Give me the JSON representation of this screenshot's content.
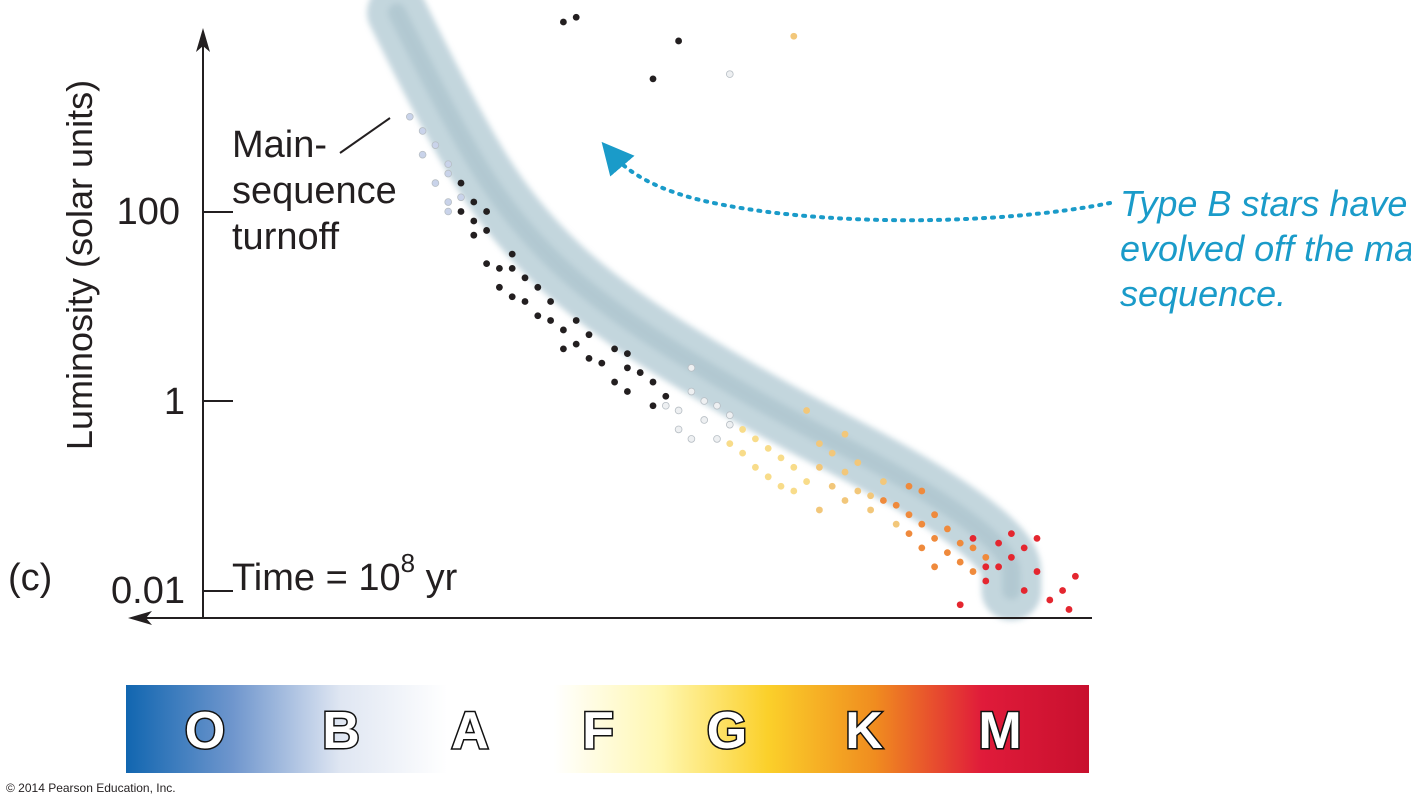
{
  "panel_label": "(c)",
  "copyright": "© 2014 Pearson Education, Inc.",
  "chart_data": {
    "type": "scatter",
    "title": "",
    "ylabel": "Luminosity (solar units)",
    "xlabel": "",
    "y_scale": "log",
    "y_ticks": [
      {
        "value": 100,
        "label": "100"
      },
      {
        "value": 1,
        "label": "1"
      },
      {
        "value": 0.01,
        "label": "0.01"
      }
    ],
    "x_categories": [
      "O",
      "B",
      "A",
      "F",
      "G",
      "K",
      "M"
    ],
    "time_note": {
      "prefix": "Time ",
      "eq": "=",
      "base": " 10",
      "exp": "8",
      "suffix": " yr"
    },
    "turnoff_label": [
      "Main-",
      "sequence",
      "turnoff"
    ],
    "annotation": [
      "Type B stars have",
      "evolved off the main",
      "sequence."
    ],
    "annotation_color": "#1a9bc9",
    "band_color": "#b9cfd8",
    "star_colors": {
      "blue": "#c9d3ea",
      "black": "#231f20",
      "white": "#eef0f2",
      "yellow": "#f8dc8a",
      "lightorange": "#f2c77a",
      "orange": "#ef8a3c",
      "red": "#e4262f"
    },
    "main_sequence_band": [
      {
        "spectral": 1.5,
        "log_l": 4.1
      },
      {
        "spectral": 1.9,
        "log_l": 3.0
      },
      {
        "spectral": 2.4,
        "log_l": 1.9
      },
      {
        "spectral": 3.1,
        "log_l": 1.0
      },
      {
        "spectral": 4.3,
        "log_l": 0.0
      },
      {
        "spectral": 5.6,
        "log_l": -0.9
      },
      {
        "spectral": 6.3,
        "log_l": -1.6
      },
      {
        "spectral": 6.3,
        "log_l": -2.0
      }
    ],
    "series": [
      {
        "color": "blue",
        "points": [
          [
            1.6,
            3.0
          ],
          [
            1.7,
            2.6
          ],
          [
            1.7,
            2.85
          ],
          [
            1.8,
            2.7
          ],
          [
            1.8,
            2.3
          ],
          [
            1.9,
            2.4
          ],
          [
            1.9,
            2.1
          ],
          [
            1.9,
            2.0
          ],
          [
            2.0,
            2.15
          ],
          [
            1.9,
            2.5
          ]
        ]
      },
      {
        "color": "black",
        "points": [
          [
            2.0,
            2.3
          ],
          [
            2.1,
            2.1
          ],
          [
            2.1,
            1.75
          ],
          [
            2.2,
            1.45
          ],
          [
            2.2,
            2.0
          ],
          [
            2.3,
            1.4
          ],
          [
            2.3,
            1.2
          ],
          [
            2.4,
            1.55
          ],
          [
            2.5,
            1.3
          ],
          [
            2.5,
            1.05
          ],
          [
            2.6,
            1.2
          ],
          [
            2.6,
            0.9
          ],
          [
            2.7,
            1.05
          ],
          [
            2.8,
            0.75
          ],
          [
            2.8,
            0.55
          ],
          [
            2.9,
            0.6
          ],
          [
            3.0,
            0.45
          ],
          [
            3.0,
            0.7
          ],
          [
            3.1,
            0.4
          ],
          [
            3.2,
            0.55
          ],
          [
            3.2,
            0.2
          ],
          [
            3.3,
            0.35
          ],
          [
            3.3,
            0.1
          ],
          [
            3.4,
            0.3
          ],
          [
            3.5,
            -0.05
          ],
          [
            3.5,
            0.2
          ],
          [
            2.7,
            0.85
          ],
          [
            2.9,
            0.85
          ],
          [
            2.2,
            1.8
          ],
          [
            2.4,
            1.1
          ],
          [
            2.0,
            2.0
          ],
          [
            2.1,
            1.9
          ],
          [
            2.4,
            1.4
          ],
          [
            3.3,
            0.5
          ],
          [
            3.6,
            0.05
          ]
        ]
      },
      {
        "color": "white",
        "points": [
          [
            3.6,
            -0.05
          ],
          [
            3.7,
            -0.1
          ],
          [
            3.7,
            -0.3
          ],
          [
            3.8,
            0.1
          ],
          [
            3.8,
            0.35
          ],
          [
            3.9,
            -0.2
          ],
          [
            4.0,
            -0.05
          ],
          [
            4.0,
            -0.4
          ],
          [
            4.1,
            -0.25
          ],
          [
            4.1,
            -0.15
          ],
          [
            3.8,
            -0.4
          ],
          [
            3.9,
            0.0
          ]
        ]
      },
      {
        "color": "yellow",
        "points": [
          [
            4.1,
            -0.45
          ],
          [
            4.2,
            -0.3
          ],
          [
            4.2,
            -0.55
          ],
          [
            4.3,
            -0.4
          ],
          [
            4.3,
            -0.7
          ],
          [
            4.4,
            -0.5
          ],
          [
            4.4,
            -0.8
          ],
          [
            4.5,
            -0.6
          ],
          [
            4.5,
            -0.9
          ],
          [
            4.6,
            -0.7
          ],
          [
            4.7,
            -0.85
          ],
          [
            4.6,
            -0.95
          ]
        ]
      },
      {
        "color": "lightorange",
        "points": [
          [
            4.7,
            -0.1
          ],
          [
            4.8,
            -0.45
          ],
          [
            4.8,
            -0.7
          ],
          [
            4.9,
            -0.55
          ],
          [
            4.9,
            -0.9
          ],
          [
            5.0,
            -0.75
          ],
          [
            5.0,
            -1.05
          ],
          [
            5.1,
            -0.95
          ],
          [
            5.1,
            -0.65
          ],
          [
            5.2,
            -1.15
          ],
          [
            5.3,
            -0.85
          ],
          [
            4.8,
            -1.15
          ],
          [
            5.2,
            -1.0
          ],
          [
            5.0,
            -0.35
          ],
          [
            5.4,
            -1.3
          ]
        ]
      },
      {
        "color": "orange",
        "points": [
          [
            5.4,
            -1.1
          ],
          [
            5.5,
            -1.2
          ],
          [
            5.5,
            -1.4
          ],
          [
            5.6,
            -1.3
          ],
          [
            5.6,
            -1.55
          ],
          [
            5.7,
            -1.2
          ],
          [
            5.7,
            -1.45
          ],
          [
            5.8,
            -1.35
          ],
          [
            5.8,
            -1.6
          ],
          [
            5.9,
            -1.5
          ],
          [
            5.9,
            -1.7
          ],
          [
            6.0,
            -1.55
          ],
          [
            5.6,
            -0.95
          ],
          [
            5.7,
            -1.75
          ],
          [
            6.0,
            -1.8
          ],
          [
            5.3,
            -1.05
          ],
          [
            5.5,
            -0.9
          ],
          [
            6.1,
            -1.65
          ]
        ]
      },
      {
        "color": "red",
        "points": [
          [
            6.0,
            -1.45
          ],
          [
            6.1,
            -1.9
          ],
          [
            6.1,
            -1.75
          ],
          [
            6.2,
            -1.5
          ],
          [
            6.2,
            -1.75
          ],
          [
            6.3,
            -1.65
          ],
          [
            6.3,
            -1.4
          ],
          [
            6.4,
            -2.0
          ],
          [
            6.5,
            -1.8
          ],
          [
            6.5,
            -1.45
          ],
          [
            6.6,
            -2.1
          ],
          [
            6.7,
            -2.0
          ],
          [
            6.8,
            -1.85
          ],
          [
            6.4,
            -1.55
          ],
          [
            5.9,
            -2.15
          ],
          [
            6.75,
            -2.2
          ]
        ]
      },
      {
        "color": "black",
        "points": [
          [
            2.8,
            4.0
          ],
          [
            2.9,
            4.05
          ],
          [
            3.5,
            3.4
          ],
          [
            3.7,
            3.8
          ]
        ]
      },
      {
        "color": "white",
        "points": [
          [
            4.1,
            3.45
          ]
        ]
      },
      {
        "color": "lightorange",
        "points": [
          [
            4.6,
            3.85
          ],
          [
            5.6,
            4.35
          ],
          [
            5.6,
            4.45
          ]
        ]
      }
    ]
  },
  "colorbar": {
    "stops": [
      "#1166b0",
      "#6f96cd",
      "#dfe6f2",
      "#ffffff",
      "#ffffff",
      "#fff7b0",
      "#fbd02a",
      "#f08c1f",
      "#e01b3a",
      "#c8102e"
    ]
  }
}
